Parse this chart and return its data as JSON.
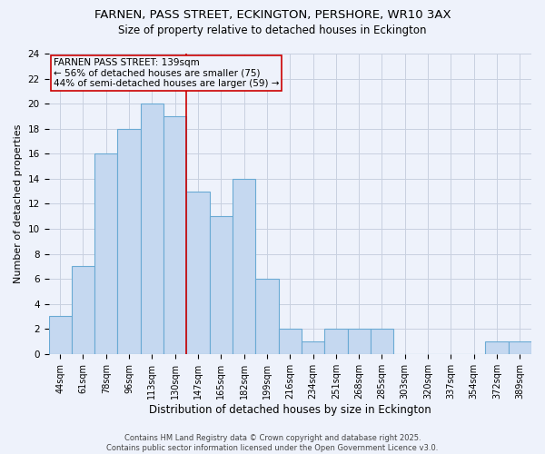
{
  "title_line1": "FARNEN, PASS STREET, ECKINGTON, PERSHORE, WR10 3AX",
  "title_line2": "Size of property relative to detached houses in Eckington",
  "xlabel": "Distribution of detached houses by size in Eckington",
  "ylabel": "Number of detached properties",
  "categories": [
    "44sqm",
    "61sqm",
    "78sqm",
    "96sqm",
    "113sqm",
    "130sqm",
    "147sqm",
    "165sqm",
    "182sqm",
    "199sqm",
    "216sqm",
    "234sqm",
    "251sqm",
    "268sqm",
    "285sqm",
    "303sqm",
    "320sqm",
    "337sqm",
    "354sqm",
    "372sqm",
    "389sqm"
  ],
  "values": [
    3,
    7,
    16,
    18,
    20,
    19,
    13,
    11,
    14,
    6,
    2,
    1,
    2,
    2,
    2,
    0,
    0,
    0,
    0,
    1,
    1
  ],
  "bar_color": "#c5d8f0",
  "bar_edge_color": "#6aaad4",
  "bar_width": 1.0,
  "vline_x": 5.5,
  "vline_color": "#cc0000",
  "annotation_text": "FARNEN PASS STREET: 139sqm\n← 56% of detached houses are smaller (75)\n44% of semi-detached houses are larger (59) →",
  "annotation_fontsize": 7.5,
  "ylim": [
    0,
    24
  ],
  "yticks": [
    0,
    2,
    4,
    6,
    8,
    10,
    12,
    14,
    16,
    18,
    20,
    22,
    24
  ],
  "background_color": "#eef2fb",
  "grid_color": "#c8d0e0",
  "footer_text": "Contains HM Land Registry data © Crown copyright and database right 2025.\nContains public sector information licensed under the Open Government Licence v3.0.",
  "title_fontsize": 9.5,
  "subtitle_fontsize": 8.5,
  "xlabel_fontsize": 8.5,
  "ylabel_fontsize": 8,
  "tick_fontsize": 7,
  "ytick_fontsize": 7.5
}
